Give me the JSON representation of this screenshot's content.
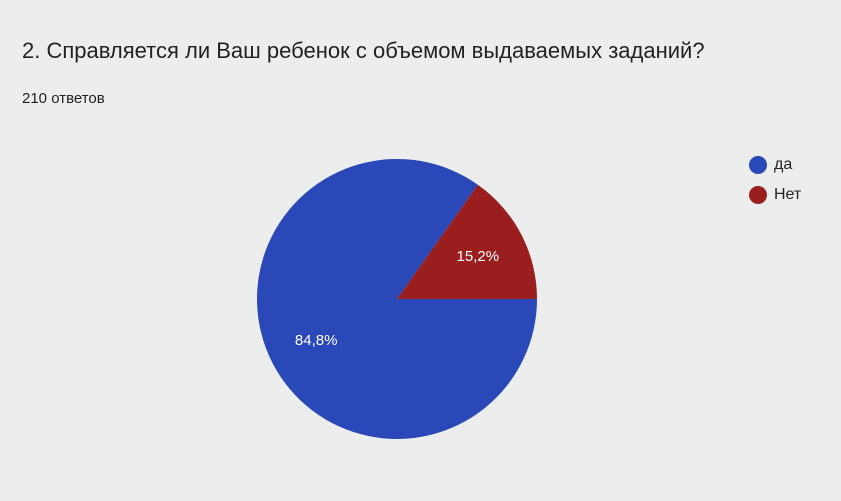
{
  "chart_data": {
    "type": "pie",
    "title": "2. Справляется ли Ваш ребенок с объемом выдаваемых заданий?",
    "subtitle": "210 ответов",
    "categories": [
      "да",
      "Нет"
    ],
    "values": [
      84.8,
      15.2
    ],
    "value_labels": [
      "84,8%",
      "15,2%"
    ],
    "colors": [
      "#2a48b8",
      "#9a1e1e"
    ],
    "legend": "right"
  }
}
